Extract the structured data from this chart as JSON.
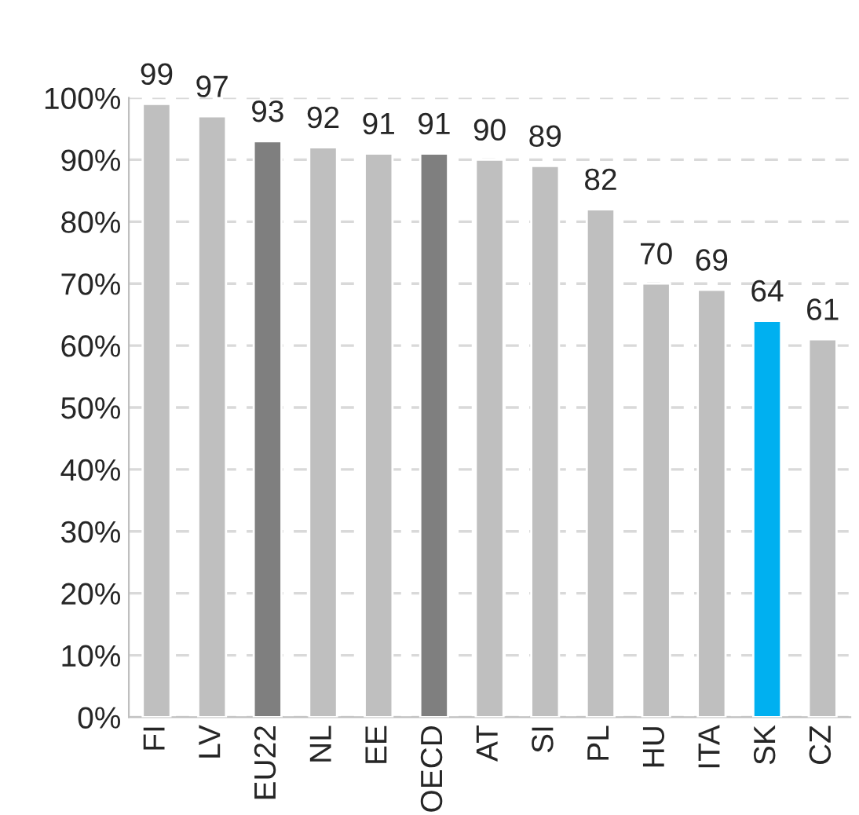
{
  "chart_data": {
    "type": "bar",
    "categories": [
      "FI",
      "LV",
      "EU22",
      "NL",
      "EE",
      "OECD",
      "AT",
      "SI",
      "PL",
      "HU",
      "ITA",
      "SK",
      "CZ"
    ],
    "values": [
      99,
      97,
      93,
      92,
      91,
      91,
      90,
      89,
      82,
      70,
      69,
      64,
      61
    ],
    "colors": [
      "#bfbfbf",
      "#bfbfbf",
      "#7f7f7f",
      "#bfbfbf",
      "#bfbfbf",
      "#7f7f7f",
      "#bfbfbf",
      "#bfbfbf",
      "#bfbfbf",
      "#bfbfbf",
      "#bfbfbf",
      "#00b0f0",
      "#bfbfbf"
    ],
    "ylim": [
      0,
      100
    ],
    "yticks": [
      {
        "value": 0,
        "label": "0%"
      },
      {
        "value": 10,
        "label": "10%"
      },
      {
        "value": 20,
        "label": "20%"
      },
      {
        "value": 30,
        "label": "30%"
      },
      {
        "value": 40,
        "label": "40%"
      },
      {
        "value": 50,
        "label": "50%"
      },
      {
        "value": 60,
        "label": "60%"
      },
      {
        "value": 70,
        "label": "70%"
      },
      {
        "value": 80,
        "label": "80%"
      },
      {
        "value": 90,
        "label": "90%"
      },
      {
        "value": 100,
        "label": "100%"
      }
    ],
    "grid": "y",
    "data_labels": true,
    "legend": false
  }
}
